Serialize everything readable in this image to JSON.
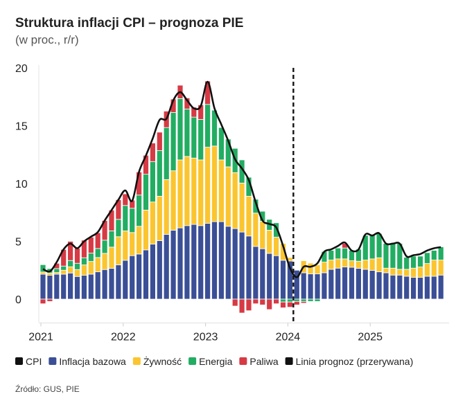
{
  "chart_data": {
    "type": "bar",
    "stacked": true,
    "title": "Struktura inflacji CPI – prognoza PIE",
    "subtitle": "(w proc., r/r)",
    "source": "Źródło: GUS, PIE",
    "ylim": [
      -2,
      20
    ],
    "yticks": [
      0,
      5,
      10,
      15,
      20
    ],
    "xticks": [
      "2021",
      "2022",
      "2023",
      "2024",
      "2025"
    ],
    "start_month": "2021-01",
    "forecast_line_after": "2024-01",
    "legend_position": "bottom",
    "grid": false,
    "colors": {
      "cpi": "#111111",
      "core": "#3b4f96",
      "food": "#fbc52f",
      "energy": "#22ad62",
      "fuel": "#d63a44",
      "forecast": "#111111"
    },
    "legend": [
      {
        "key": "cpi",
        "label": "CPI"
      },
      {
        "key": "core",
        "label": "Inflacja bazowa"
      },
      {
        "key": "food",
        "label": "Żywność"
      },
      {
        "key": "energy",
        "label": "Energia"
      },
      {
        "key": "fuel",
        "label": "Paliwa"
      },
      {
        "key": "forecast",
        "label": "Linia prognoz (przerywana)"
      }
    ],
    "series": [
      {
        "name": "Inflacja bazowa",
        "key": "core",
        "values": [
          2.16,
          2.06,
          2.16,
          2.16,
          2.26,
          1.96,
          2.06,
          2.16,
          2.36,
          2.56,
          2.66,
          2.96,
          3.36,
          3.76,
          3.9,
          4.26,
          4.76,
          5.06,
          5.6,
          5.96,
          6.16,
          6.36,
          6.46,
          6.36,
          6.56,
          6.7,
          6.7,
          6.3,
          6.1,
          5.8,
          5.46,
          4.56,
          4.36,
          3.96,
          3.76,
          3.36,
          3.3,
          2.5,
          2.28,
          2.18,
          2.18,
          2.28,
          2.58,
          2.68,
          2.78,
          2.76,
          2.66,
          2.58,
          2.48,
          2.36,
          2.28,
          2.08,
          2.08,
          1.98,
          1.88,
          1.88,
          1.98,
          1.98,
          2.08
        ]
      },
      {
        "name": "Żywność",
        "key": "food",
        "values": [
          0.18,
          0.2,
          0.14,
          0.34,
          0.54,
          0.6,
          0.9,
          1.1,
          1.24,
          1.4,
          1.84,
          2.44,
          2.54,
          2.0,
          2.4,
          3.44,
          3.64,
          3.84,
          4.74,
          5.14,
          5.88,
          5.98,
          5.74,
          5.68,
          6.58,
          6.54,
          5.34,
          5.14,
          4.84,
          4.24,
          3.44,
          2.88,
          2.38,
          2.0,
          1.6,
          1.46,
          0.3,
          0,
          1.04,
          0.94,
          0.78,
          0.92,
          0.8,
          0.8,
          0.7,
          0.56,
          0.62,
          0.8,
          1.0,
          1.22,
          0.4,
          0.6,
          0.5,
          0.6,
          0.8,
          0.9,
          1.1,
          1.4,
          1.3
        ]
      },
      {
        "name": "Energia",
        "key": "energy",
        "values": [
          0.64,
          0.38,
          0.34,
          0.36,
          0.54,
          0.54,
          0.62,
          0.72,
          0.78,
          1.14,
          1.4,
          1.5,
          2.2,
          2.1,
          2.7,
          3.1,
          3.5,
          3.94,
          4.5,
          5.04,
          5.3,
          4.1,
          3.54,
          3.5,
          3.7,
          3.1,
          2.8,
          2.4,
          2.1,
          2.0,
          1.64,
          1.2,
          0.86,
          0.94,
          1.24,
          -0.25,
          -0.25,
          -0.2,
          -0.2,
          -0.2,
          -0.2,
          0.92,
          0.84,
          0.94,
          0.94,
          0.9,
          1.04,
          2.14,
          2.04,
          2.1,
          2.14,
          2.14,
          2.24,
          1.04,
          1.04,
          0.94,
          0.94,
          0.84,
          1.14
        ]
      },
      {
        "name": "Paliwa",
        "key": "fuel",
        "values": [
          -0.4,
          -0.2,
          0.46,
          1.44,
          1.66,
          1.3,
          1.52,
          1.38,
          1.36,
          1.7,
          1.8,
          1.7,
          1.0,
          0.7,
          2.0,
          1.64,
          1.6,
          1.6,
          1.42,
          1.16,
          1.16,
          0.96,
          0.86,
          1.26,
          2.02,
          0,
          0,
          0,
          -0.6,
          -1.2,
          -1.0,
          -0.4,
          -0.5,
          -0.9,
          -0.4,
          -0.5,
          -0.45,
          -0.3,
          -0.15,
          0.05,
          0,
          0,
          0,
          0,
          0.4,
          -0.05,
          0,
          -0.05,
          0,
          0,
          -0.05,
          -0.05,
          -0.05,
          -0.05,
          -0.05,
          -0.05,
          -0.05,
          -0.05,
          -0.05
        ]
      },
      {
        "name": "CPI",
        "key": "cpi",
        "type": "line",
        "values": [
          2.6,
          2.4,
          3.2,
          4.3,
          4.8,
          4.4,
          5.0,
          5.4,
          5.8,
          6.8,
          7.7,
          8.6,
          9.4,
          8.5,
          11.0,
          12.4,
          13.9,
          15.5,
          15.6,
          17.2,
          17.9,
          17.2,
          16.5,
          16.7,
          18.8,
          16.5,
          15.1,
          13.7,
          12.1,
          11.3,
          10.3,
          8.4,
          6.8,
          6.5,
          6.2,
          4.6,
          2.7,
          1.9,
          2.8,
          2.8,
          3.1,
          4.1,
          4.3,
          4.6,
          4.9,
          4.2,
          4.3,
          5.6,
          5.5,
          5.7,
          4.8,
          4.8,
          4.8,
          3.7,
          3.8,
          3.9,
          4.2,
          4.4,
          4.5
        ]
      }
    ]
  }
}
